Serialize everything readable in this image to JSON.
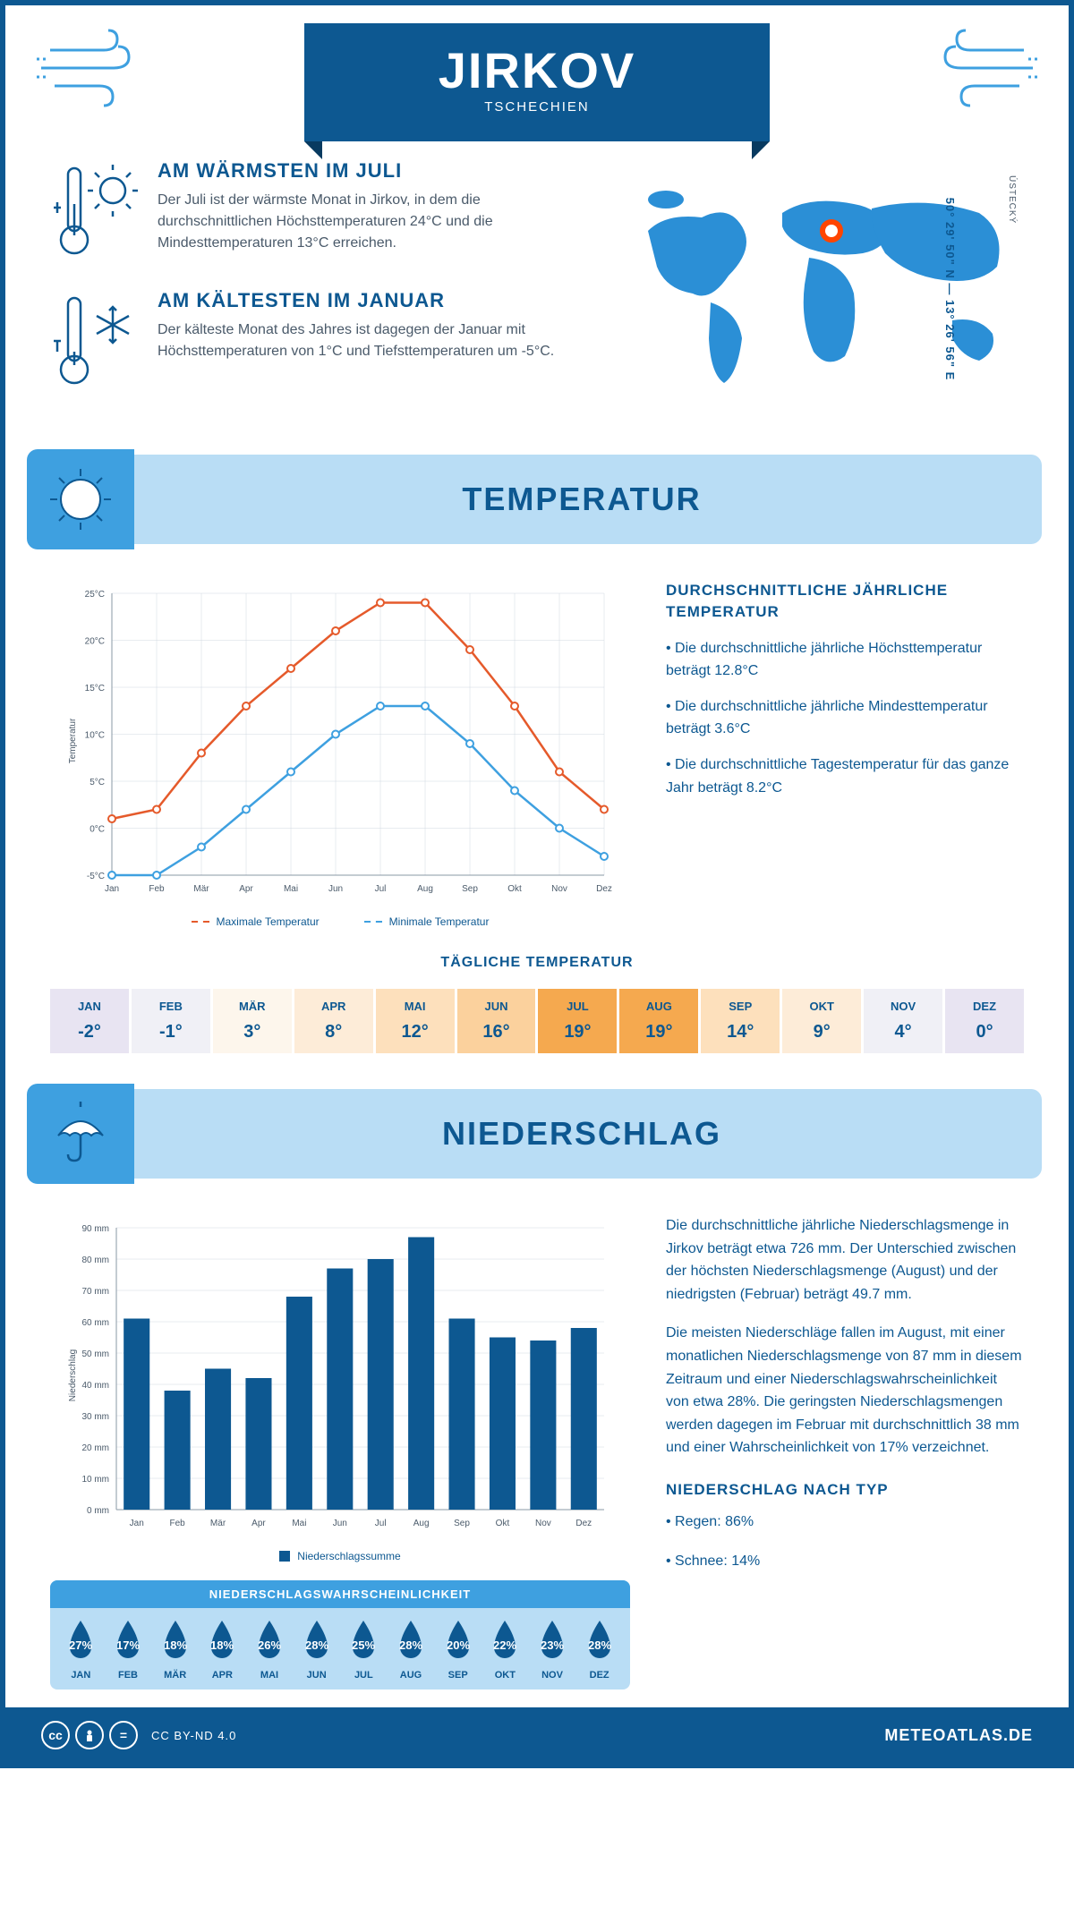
{
  "header": {
    "city": "JIRKOV",
    "country": "TSCHECHIEN"
  },
  "colors": {
    "primary": "#0d5891",
    "accent": "#3ea0e0",
    "banner_bg": "#b9ddf5",
    "max_line": "#e55a2b",
    "min_line": "#3ea0e0",
    "marker": "#ff4500",
    "text_muted": "#4a5a6a"
  },
  "intro": {
    "warmest": {
      "title": "AM WÄRMSTEN IM JULI",
      "text": "Der Juli ist der wärmste Monat in Jirkov, in dem die durchschnittlichen Höchsttemperaturen 24°C und die Mindesttemperaturen 13°C erreichen."
    },
    "coldest": {
      "title": "AM KÄLTESTEN IM JANUAR",
      "text": "Der kälteste Monat des Jahres ist dagegen der Januar mit Höchsttemperaturen von 1°C und Tiefsttemperaturen um -5°C."
    },
    "coords": "50° 29' 50\" N — 13° 26' 56\" E",
    "region": "ÚSTECKÝ"
  },
  "sections": {
    "temperature": "TEMPERATUR",
    "precipitation": "NIEDERSCHLAG"
  },
  "months": [
    "Jan",
    "Feb",
    "Mär",
    "Apr",
    "Mai",
    "Jun",
    "Jul",
    "Aug",
    "Sep",
    "Okt",
    "Nov",
    "Dez"
  ],
  "months_upper": [
    "JAN",
    "FEB",
    "MÄR",
    "APR",
    "MAI",
    "JUN",
    "JUL",
    "AUG",
    "SEP",
    "OKT",
    "NOV",
    "DEZ"
  ],
  "temp_chart": {
    "max_values": [
      1,
      2,
      8,
      13,
      17,
      21,
      24,
      24,
      19,
      13,
      6,
      2
    ],
    "min_values": [
      -5,
      -5,
      -2,
      2,
      6,
      10,
      13,
      13,
      9,
      4,
      0,
      -3
    ],
    "y_ticks": [
      -5,
      0,
      5,
      10,
      15,
      20,
      25
    ],
    "y_axis_label": "Temperatur",
    "legend_max": "Maximale Temperatur",
    "legend_min": "Minimale Temperatur"
  },
  "temp_stats": {
    "title": "DURCHSCHNITTLICHE JÄHRLICHE TEMPERATUR",
    "p1": "• Die durchschnittliche jährliche Höchsttemperatur beträgt 12.8°C",
    "p2": "• Die durchschnittliche jährliche Mindesttemperatur beträgt 3.6°C",
    "p3": "• Die durchschnittliche Tagestemperatur für das ganze Jahr beträgt 8.2°C"
  },
  "daily_temp": {
    "title": "TÄGLICHE TEMPERATUR",
    "values": [
      "-2°",
      "-1°",
      "3°",
      "8°",
      "12°",
      "16°",
      "19°",
      "19°",
      "14°",
      "9°",
      "4°",
      "0°"
    ],
    "cell_colors": [
      "#e8e4f2",
      "#f0f0f6",
      "#fdf6ec",
      "#fdecd8",
      "#fde0bc",
      "#fbd19d",
      "#f5a94f",
      "#f5a94f",
      "#fde0bc",
      "#fdecd8",
      "#f0f0f6",
      "#e8e4f2"
    ]
  },
  "precip_chart": {
    "values": [
      61,
      38,
      45,
      42,
      68,
      77,
      80,
      87,
      61,
      55,
      54,
      58
    ],
    "y_ticks": [
      0,
      10,
      20,
      30,
      40,
      50,
      60,
      70,
      80,
      90
    ],
    "y_axis_label": "Niederschlag",
    "legend": "Niederschlagssumme"
  },
  "precip_stats": {
    "p1": "Die durchschnittliche jährliche Niederschlagsmenge in Jirkov beträgt etwa 726 mm. Der Unterschied zwischen der höchsten Niederschlagsmenge (August) und der niedrigsten (Februar) beträgt 49.7 mm.",
    "p2": "Die meisten Niederschläge fallen im August, mit einer monatlichen Niederschlagsmenge von 87 mm in diesem Zeitraum und einer Niederschlagswahrscheinlichkeit von etwa 28%. Die geringsten Niederschlagsmengen werden dagegen im Februar mit durchschnittlich 38 mm und einer Wahrscheinlichkeit von 17% verzeichnet.",
    "type_title": "NIEDERSCHLAG NACH TYP",
    "type1": "• Regen: 86%",
    "type2": "• Schnee: 14%"
  },
  "probability": {
    "title": "NIEDERSCHLAGSWAHRSCHEINLICHKEIT",
    "values": [
      "27%",
      "17%",
      "18%",
      "18%",
      "26%",
      "28%",
      "25%",
      "28%",
      "20%",
      "22%",
      "23%",
      "28%"
    ],
    "drop_colors": [
      "#0d5891",
      "#3ea0e0",
      "#3ea0e0",
      "#3ea0e0",
      "#0d5891",
      "#0d5891",
      "#3ea0e0",
      "#0d5891",
      "#3ea0e0",
      "#3ea0e0",
      "#3ea0e0",
      "#0d5891"
    ]
  },
  "footer": {
    "license": "CC BY-ND 4.0",
    "brand": "METEOATLAS.DE"
  }
}
